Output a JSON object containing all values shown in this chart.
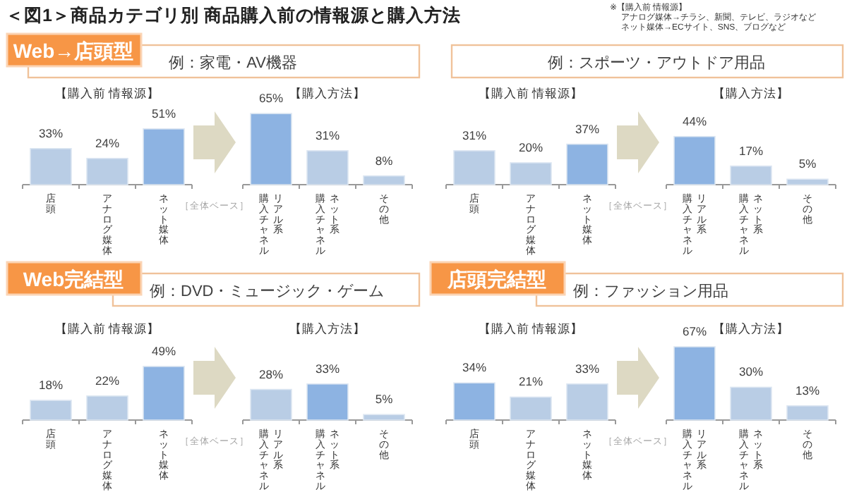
{
  "chart_data": [
    {
      "type": "bar",
      "title": "【購入前 情報源】",
      "subtitle": "例：家電・AV機器",
      "categories": [
        "店頭",
        "アナログ媒体",
        "ネット媒体"
      ],
      "values": [
        33,
        24,
        51
      ],
      "value_labels": [
        "33%",
        "24%",
        "51%"
      ],
      "colors": [
        "#b9cde5",
        "#b9cde5",
        "#8db3e2"
      ],
      "annotations": [
        "＜図1＞商品カテゴリ別  商品購入前の情報源と購入方法",
        "※【購入前 情報源】",
        "アナログ媒体→チラシ、新聞、テレビ、ラジオなど",
        "ネット媒体→ECサイト、SNS、ブログなど",
        "Web→店頭型"
      ]
    },
    {
      "type": "bar",
      "title": "【購入方法】",
      "categories": [
        "リアル系購入チャネル",
        "ネット系購入チャネル",
        "その他"
      ],
      "values": [
        65,
        31,
        8
      ],
      "value_labels": [
        "65%",
        "31%",
        "8%"
      ],
      "colors": [
        "#8db3e2",
        "#b9cde5",
        "#b9cde5"
      ],
      "annotations": [
        "［全体ベース］"
      ]
    },
    {
      "type": "bar",
      "title": "【購入前 情報源】",
      "subtitle": "例：スポーツ・アウトドア用品",
      "categories": [
        "店頭",
        "アナログ媒体",
        "ネット媒体"
      ],
      "values": [
        31,
        20,
        37
      ],
      "value_labels": [
        "31%",
        "20%",
        "37%"
      ],
      "colors": [
        "#b9cde5",
        "#b9cde5",
        "#8db3e2"
      ]
    },
    {
      "type": "bar",
      "title": "【購入方法】",
      "categories": [
        "リアル系購入チャネル",
        "ネット系購入チャネル",
        "その他"
      ],
      "values": [
        44,
        17,
        5
      ],
      "value_labels": [
        "44%",
        "17%",
        "5%"
      ],
      "colors": [
        "#8db3e2",
        "#b9cde5",
        "#b9cde5"
      ],
      "annotations": [
        "［全体ベース］"
      ]
    },
    {
      "type": "bar",
      "title": "【購入前 情報源】",
      "subtitle": "例：DVD・ミュージック・ゲーム",
      "categories": [
        "店頭",
        "アナログ媒体",
        "ネット媒体"
      ],
      "values": [
        18,
        22,
        49
      ],
      "value_labels": [
        "18%",
        "22%",
        "49%"
      ],
      "colors": [
        "#b9cde5",
        "#b9cde5",
        "#8db3e2"
      ],
      "annotations": [
        "Web完結型"
      ]
    },
    {
      "type": "bar",
      "title": "【購入方法】",
      "categories": [
        "リアル系購入チャネル",
        "ネット系購入チャネル",
        "その他"
      ],
      "values": [
        28,
        33,
        5
      ],
      "value_labels": [
        "28%",
        "33%",
        "5%"
      ],
      "colors": [
        "#b9cde5",
        "#8db3e2",
        "#b9cde5"
      ],
      "annotations": [
        "［全体ベース］"
      ]
    },
    {
      "type": "bar",
      "title": "【購入前 情報源】",
      "subtitle": "例：ファッション用品",
      "categories": [
        "店頭",
        "アナログ媒体",
        "ネット媒体"
      ],
      "values": [
        34,
        21,
        33
      ],
      "value_labels": [
        "34%",
        "21%",
        "33%"
      ],
      "colors": [
        "#8db3e2",
        "#b9cde5",
        "#b9cde5"
      ],
      "annotations": [
        "店頭完結型"
      ]
    },
    {
      "type": "bar",
      "title": "【購入方法】",
      "categories": [
        "リアル系購入チャネル",
        "ネット系購入チャネル",
        "その他"
      ],
      "values": [
        67,
        30,
        13
      ],
      "value_labels": [
        "67%",
        "30%",
        "13%"
      ],
      "colors": [
        "#8db3e2",
        "#b9cde5",
        "#b9cde5"
      ],
      "annotations": [
        "［全体ベース］"
      ]
    }
  ]
}
